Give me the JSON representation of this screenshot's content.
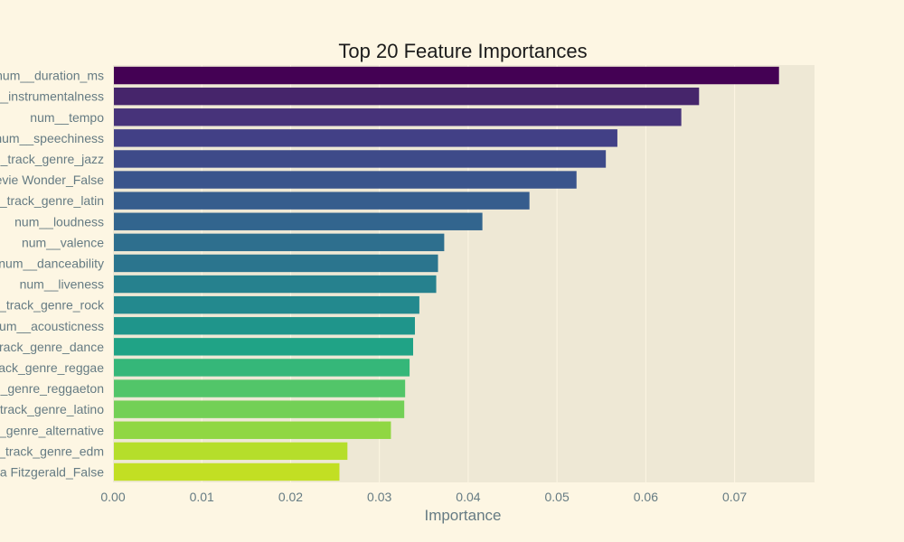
{
  "chart_data": {
    "type": "bar",
    "orientation": "horizontal",
    "title": "Top 20 Feature Importances",
    "xlabel": "Importance",
    "ylabel": "",
    "xlim": [
      0,
      0.079
    ],
    "xticks": [
      0.0,
      0.01,
      0.02,
      0.03,
      0.04,
      0.05,
      0.06,
      0.07
    ],
    "xtick_labels": [
      "0.00",
      "0.01",
      "0.02",
      "0.03",
      "0.04",
      "0.05",
      "0.06",
      "0.07"
    ],
    "grid": true,
    "categories": [
      "num__duration_ms",
      "__instrumentalness",
      "num__tempo",
      "num__speechiness",
      "_track_genre_jazz",
      "evie Wonder_False",
      "_track_genre_latin",
      "num__loudness",
      "num__valence",
      "num__danceability",
      "num__liveness",
      "_track_genre_rock",
      "um__acousticness",
      "rack_genre_dance",
      "ack_genre_reggae",
      "_genre_reggaeton",
      "track_genre_latino",
      "_genre_alternative",
      "_track_genre_edm",
      "a Fitzgerald_False"
    ],
    "values": [
      0.075,
      0.066,
      0.064,
      0.0568,
      0.0555,
      0.0522,
      0.0469,
      0.0416,
      0.0373,
      0.0366,
      0.0364,
      0.0345,
      0.034,
      0.0338,
      0.0334,
      0.0329,
      0.0328,
      0.0313,
      0.0264,
      0.0255
    ],
    "colors": [
      "#440154",
      "#46256b",
      "#47337a",
      "#424086",
      "#3e4a89",
      "#3a548c",
      "#365d8d",
      "#32658e",
      "#2e6f8e",
      "#2b758e",
      "#26818e",
      "#23898e",
      "#1f958b",
      "#20a386",
      "#35b779",
      "#52c569",
      "#73d056",
      "#90d743",
      "#b5de2b",
      "#c2df23"
    ]
  }
}
